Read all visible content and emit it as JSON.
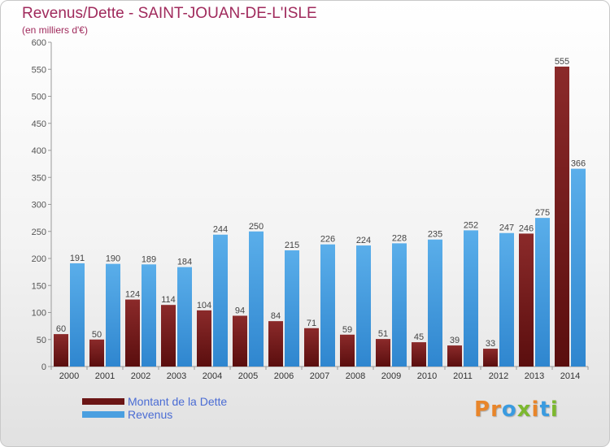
{
  "header": {
    "title": "Revenus/Dette - SAINT-JOUAN-DE-L'ISLE",
    "subtitle": "(en milliers d'€)"
  },
  "legend": {
    "items": [
      {
        "label": "Montant de la Dette",
        "color": "#6b1515"
      },
      {
        "label": "Revenus",
        "color": "#4a9fe0"
      }
    ]
  },
  "logo": {
    "letters": [
      {
        "ch": "P",
        "color": "#e8852a"
      },
      {
        "ch": "r",
        "color": "#e8852a"
      },
      {
        "ch": "o",
        "color": "#3a9be0"
      },
      {
        "ch": "x",
        "color": "#7cb82f"
      },
      {
        "ch": "i",
        "color": "#e8852a"
      },
      {
        "ch": "t",
        "color": "#3a9be0"
      },
      {
        "ch": "i",
        "color": "#7cb82f"
      }
    ]
  },
  "colors": {
    "title": "#a02a5c",
    "legend_text": "#4a6cd4",
    "dette_light": "#8b2a2a",
    "dette_dark": "#5a0e0e",
    "revenus_light": "#5aaeea",
    "revenus_dark": "#2f86cf"
  },
  "chart_data": {
    "type": "bar",
    "categories": [
      "2000",
      "2001",
      "2002",
      "2003",
      "2004",
      "2005",
      "2006",
      "2007",
      "2008",
      "2009",
      "2010",
      "2011",
      "2012",
      "2013",
      "2014"
    ],
    "series": [
      {
        "name": "Montant de la Dette",
        "values": [
          60,
          50,
          124,
          114,
          104,
          94,
          84,
          71,
          59,
          51,
          45,
          39,
          33,
          246,
          555
        ]
      },
      {
        "name": "Revenus",
        "values": [
          191,
          190,
          189,
          184,
          244,
          250,
          215,
          226,
          224,
          228,
          235,
          252,
          247,
          275,
          366
        ]
      }
    ],
    "yticks": [
      0,
      50,
      100,
      150,
      200,
      250,
      300,
      350,
      400,
      450,
      500,
      550,
      600
    ],
    "ylim": [
      0,
      600
    ],
    "grid": false,
    "legend_position": "bottom-left"
  }
}
